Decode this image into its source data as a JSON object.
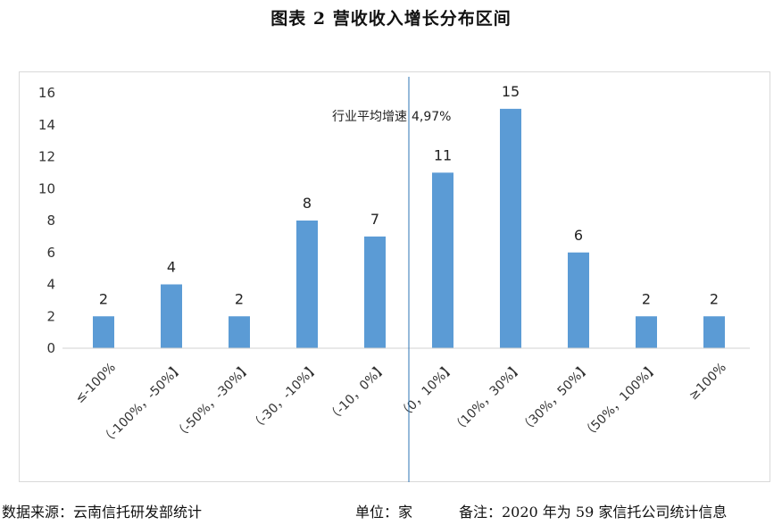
{
  "title": "图表 2   营收收入增长分布区间",
  "footer": {
    "source": "数据来源：云南信托研发部统计",
    "unit": "单位：家",
    "note": "备注：2020 年为 59 家信托公司统计信息"
  },
  "chart_data": {
    "type": "bar",
    "title": "图表 2   营收收入增长分布区间",
    "xlabel": "",
    "ylabel": "",
    "categories": [
      "≤-100%",
      "（-100%，-50%】",
      "（-50%，-30%】",
      "（-30，-10%】",
      "（-10，0%】",
      "（0，10%】",
      "（10%，30%】",
      "（30%，50%】",
      "（50%，100%】",
      "≥100%"
    ],
    "values": [
      2,
      4,
      2,
      8,
      7,
      11,
      15,
      6,
      2,
      2
    ],
    "ylim": [
      0,
      16
    ],
    "yticks": [
      0,
      2,
      4,
      6,
      8,
      10,
      12,
      14,
      16
    ],
    "grid": false,
    "legend": "none",
    "bar_color": "#5B9BD5",
    "annotation": {
      "label": "行业平均增速",
      "value": "4,97%",
      "position_between": [
        "（-10，0%】",
        "（0，10%】"
      ]
    }
  }
}
